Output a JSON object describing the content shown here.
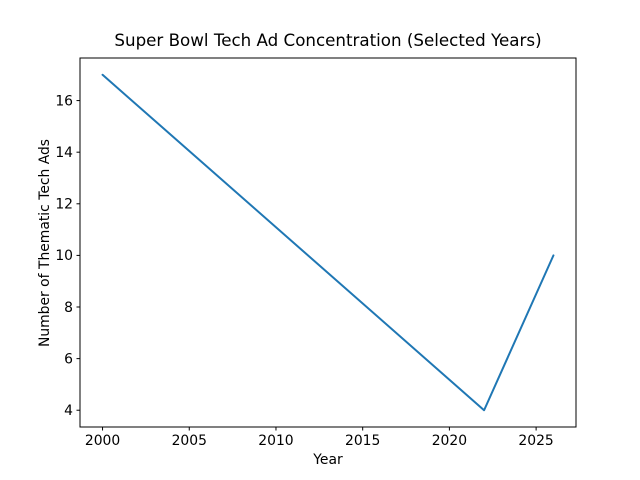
{
  "chart_data": {
    "type": "line",
    "title": "Super Bowl Tech Ad Concentration (Selected Years)",
    "xlabel": "Year",
    "ylabel": "Number of Thematic Tech Ads",
    "x": [
      2000,
      2022,
      2026
    ],
    "y": [
      17,
      4,
      10
    ],
    "xlim": [
      1998.7,
      2027.3
    ],
    "ylim": [
      3.35,
      17.65
    ],
    "xticks": [
      2000,
      2005,
      2010,
      2015,
      2020,
      2025
    ],
    "yticks": [
      4,
      6,
      8,
      10,
      12,
      14,
      16
    ],
    "grid": false,
    "legend_position": "none",
    "line_color": "#1f77b4",
    "axis_color": "#000000",
    "background_color": "#ffffff"
  }
}
